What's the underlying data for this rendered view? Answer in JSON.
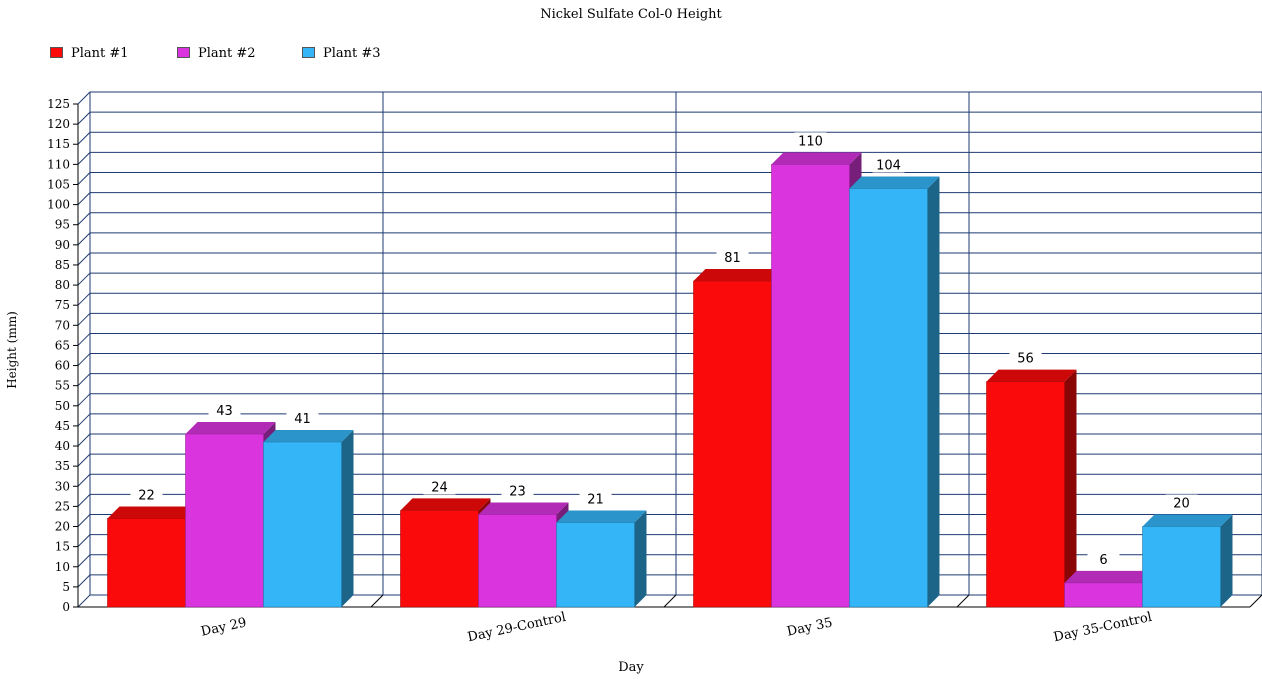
{
  "chart_data": {
    "type": "bar",
    "title": "Nickel Sulfate Col-0 Height",
    "xlabel": "Day",
    "ylabel": "Height (mm)",
    "categories": [
      "Day 29",
      "Day 29-Control",
      "Day 35",
      "Day 35-Control"
    ],
    "series": [
      {
        "name": "Plant #1",
        "values": [
          22,
          24,
          81,
          56
        ],
        "color": "#fa0a0a"
      },
      {
        "name": "Plant #2",
        "values": [
          43,
          23,
          110,
          6
        ],
        "color": "#d934de"
      },
      {
        "name": "Plant #3",
        "values": [
          41,
          21,
          104,
          20
        ],
        "color": "#33b5f8"
      }
    ],
    "ylim": [
      0,
      125
    ],
    "ytick_step": 5,
    "grid": true,
    "legend_position": "top-left",
    "style": "3d-bars"
  }
}
